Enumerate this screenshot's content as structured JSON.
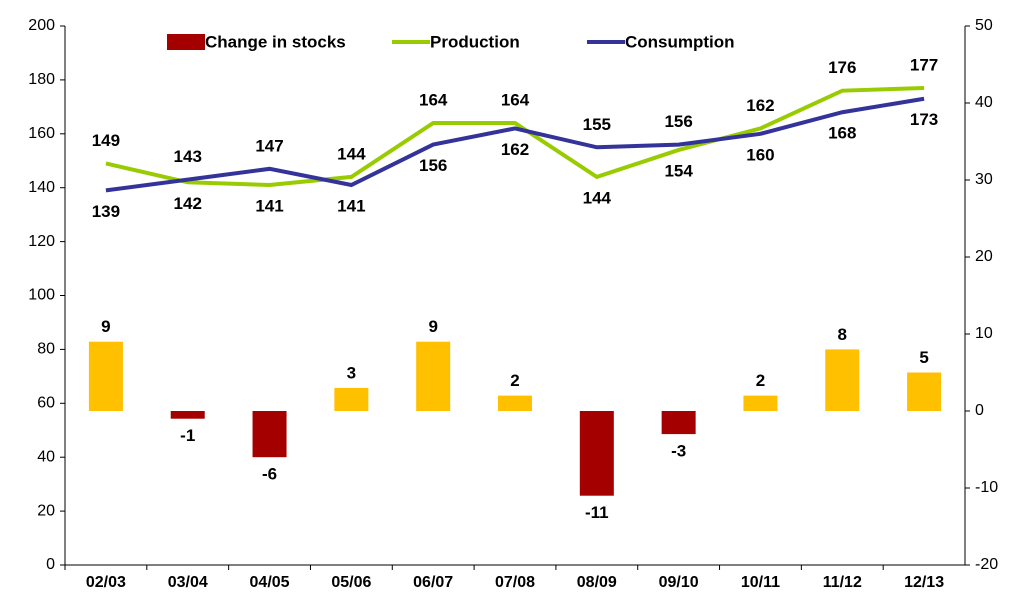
{
  "chart_data": {
    "type": "bar_line",
    "categories": [
      "02/03",
      "03/04",
      "04/05",
      "05/06",
      "06/07",
      "07/08",
      "08/09",
      "09/10",
      "10/11",
      "11/12",
      "12/13"
    ],
    "series": [
      {
        "name": "Change in stocks",
        "type": "bar",
        "axis": "y2",
        "color": "#a50000",
        "positive_color": "#ffc000",
        "values": [
          9,
          -1,
          -6,
          3,
          9,
          2,
          -11,
          -3,
          2,
          8,
          5
        ]
      },
      {
        "name": "Production",
        "type": "line",
        "color": "#99cc00",
        "values": [
          149,
          142,
          141,
          144,
          164,
          164,
          144,
          154,
          162,
          176,
          177
        ]
      },
      {
        "name": "Consumption",
        "type": "line",
        "color": "#333399",
        "values": [
          139,
          143,
          147,
          141,
          156,
          162,
          155,
          156,
          160,
          168,
          173
        ]
      }
    ],
    "ylim": [
      0,
      200
    ],
    "yticks": [
      0,
      20,
      40,
      60,
      80,
      100,
      120,
      140,
      160,
      180,
      200
    ],
    "y2lim": [
      -20,
      50
    ],
    "y2ticks": [
      -20,
      -10,
      0,
      10,
      20,
      30,
      40,
      50
    ],
    "legend": "top"
  }
}
